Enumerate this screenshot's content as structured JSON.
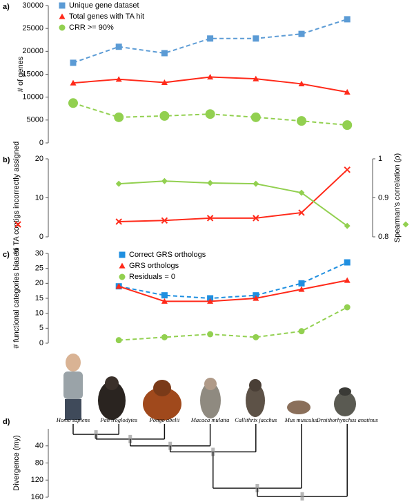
{
  "chart_data": [
    {
      "type": "line",
      "panel_label": "a)",
      "ylabel": "# of genes",
      "ylim": [
        0,
        30000
      ],
      "yticks": [
        0,
        5000,
        10000,
        15000,
        20000,
        25000,
        30000
      ],
      "series": [
        {
          "name": "Unique gene dataset",
          "color": "#5b9bd5",
          "marker": "square",
          "dashed": true,
          "values": [
            17500,
            21000,
            19600,
            22800,
            22800,
            23800,
            27000
          ]
        },
        {
          "name": "Total genes with TA hit",
          "color": "#ff2a1a",
          "marker": "triangle",
          "dashed": false,
          "values": [
            13100,
            13900,
            13200,
            14400,
            14000,
            12900,
            11100
          ]
        },
        {
          "name": "CRR >= 90%",
          "color": "#92d050",
          "marker": "circle",
          "dashed": true,
          "values": [
            8700,
            5600,
            5900,
            6300,
            5600,
            4800,
            3900
          ]
        }
      ]
    },
    {
      "type": "line",
      "panel_label": "b)",
      "ylabel": "% TA contigs incorrectly assigned",
      "y2label": "Spearman's correlation (ρ)",
      "ylim": [
        0,
        20
      ],
      "yticks": [
        0,
        10,
        20
      ],
      "y2lim": [
        0.8,
        1
      ],
      "y2ticks": [
        0.8,
        0.9,
        1
      ],
      "series": [
        {
          "name": "% TA contigs incorrectly assigned",
          "color": "#ff2a1a",
          "marker": "x",
          "dashed": false,
          "values": [
            null,
            3.9,
            4.2,
            4.8,
            4.8,
            6.2,
            17.2
          ]
        },
        {
          "name": "Spearman's correlation (ρ)",
          "color": "#92d050",
          "marker": "diamond",
          "dashed": false,
          "axis": "y2",
          "values": [
            null,
            0.936,
            0.943,
            0.938,
            0.936,
            0.913,
            0.828
          ]
        }
      ]
    },
    {
      "type": "line",
      "panel_label": "c)",
      "ylabel": "# functional categories biased",
      "ylim": [
        0,
        30
      ],
      "yticks": [
        0,
        5,
        10,
        15,
        20,
        25,
        30
      ],
      "series": [
        {
          "name": "Correct GRS orthologs",
          "color": "#1f8fe0",
          "marker": "square",
          "dashed": true,
          "values": [
            null,
            19,
            16,
            15,
            16,
            20,
            27
          ]
        },
        {
          "name": "GRS orthologs",
          "color": "#ff2a1a",
          "marker": "triangle",
          "dashed": false,
          "values": [
            null,
            19,
            14,
            14,
            15,
            18,
            21
          ]
        },
        {
          "name": "Residuals = 0",
          "color": "#92d050",
          "marker": "circle",
          "dashed": true,
          "values": [
            null,
            1,
            2,
            3,
            2,
            4,
            12
          ]
        }
      ]
    },
    {
      "type": "tree",
      "panel_label": "d)",
      "ylabel": "Divergence (my)",
      "leaves": [
        "Homo sapiens",
        "Pan troglodytes",
        "Pongo abelii",
        "Macaca mulatta",
        "Callithrix jacchus",
        "Mus musculus",
        "Ornithorhynchus anatinus"
      ],
      "node_ages": [
        13,
        24,
        40,
        54,
        139,
        158
      ],
      "ylim": [
        0,
        160
      ],
      "yticks": [
        40,
        80,
        120,
        160
      ]
    }
  ]
}
